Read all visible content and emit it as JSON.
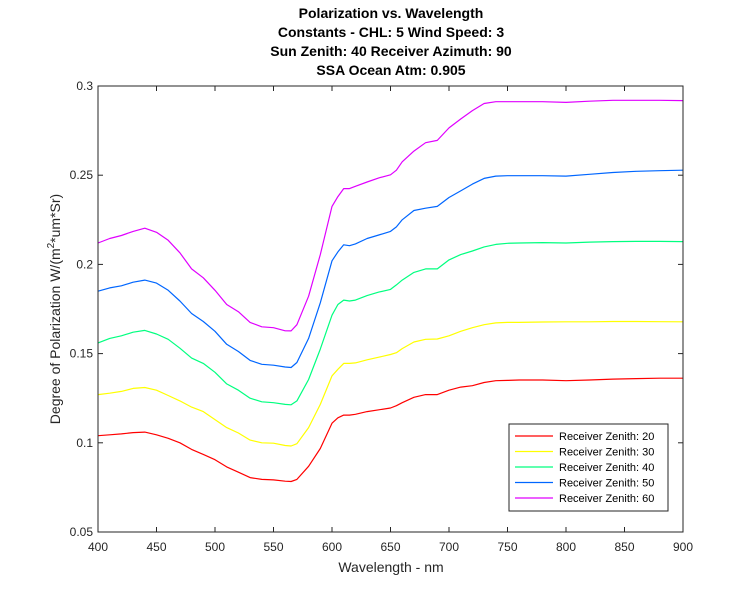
{
  "chart_data": {
    "type": "line",
    "title_lines": [
      "Polarization vs. Wavelength",
      "Constants - CHL: 5 Wind Speed: 3",
      "Sun Zenith: 40 Receiver Azimuth: 90",
      "SSA Ocean Atm: 0.905"
    ],
    "xlabel": "Wavelength - nm",
    "ylabel": "Degree of Polarization W/(m²*um*Sr)",
    "ylabel_parts": {
      "pre": "Degree of Polarization W/(m",
      "sup": "2",
      "post": "*um*Sr)"
    },
    "xlim": [
      400,
      900
    ],
    "ylim": [
      0.05,
      0.3
    ],
    "xticks": [
      400,
      450,
      500,
      550,
      600,
      650,
      700,
      750,
      800,
      850,
      900
    ],
    "xtick_labels": [
      "400",
      "450",
      "500",
      "550",
      "600",
      "650",
      "700",
      "750",
      "800",
      "850",
      "900"
    ],
    "yticks": [
      0.05,
      0.1,
      0.15,
      0.2,
      0.25,
      0.3
    ],
    "ytick_labels": [
      "0.05",
      "0.1",
      "0.15",
      "0.2",
      "0.25",
      "0.3"
    ],
    "grid": false,
    "legend_position": "bottom-right",
    "x": [
      400,
      410,
      420,
      430,
      440,
      450,
      460,
      470,
      480,
      490,
      500,
      510,
      520,
      530,
      540,
      550,
      560,
      565,
      570,
      580,
      590,
      600,
      605,
      610,
      615,
      620,
      630,
      640,
      650,
      655,
      660,
      670,
      680,
      690,
      700,
      710,
      720,
      730,
      740,
      750,
      760,
      780,
      800,
      820,
      840,
      860,
      880,
      900
    ],
    "series": [
      {
        "name": "Receiver Zenith: 20",
        "color": "#ff0000",
        "values": [
          0.104,
          0.1045,
          0.105,
          0.1057,
          0.106,
          0.1045,
          0.1025,
          0.1,
          0.0963,
          0.0935,
          0.0905,
          0.0865,
          0.0835,
          0.0805,
          0.0795,
          0.0792,
          0.0785,
          0.0783,
          0.0795,
          0.0868,
          0.0968,
          0.111,
          0.114,
          0.1155,
          0.1155,
          0.116,
          0.1175,
          0.1185,
          0.1195,
          0.1208,
          0.1225,
          0.1255,
          0.127,
          0.127,
          0.1295,
          0.1312,
          0.132,
          0.1338,
          0.1348,
          0.135,
          0.1352,
          0.1352,
          0.1348,
          0.1352,
          0.1357,
          0.136,
          0.1362,
          0.1362
        ]
      },
      {
        "name": "Receiver Zenith: 30",
        "color": "#ffff00",
        "values": [
          0.127,
          0.1278,
          0.1288,
          0.1305,
          0.131,
          0.1295,
          0.1265,
          0.1235,
          0.12,
          0.1175,
          0.113,
          0.1085,
          0.1055,
          0.1015,
          0.1,
          0.0998,
          0.0985,
          0.0982,
          0.0995,
          0.1085,
          0.1215,
          0.1375,
          0.1412,
          0.1445,
          0.1445,
          0.1448,
          0.1465,
          0.148,
          0.1495,
          0.1505,
          0.1528,
          0.1565,
          0.158,
          0.1582,
          0.16,
          0.1625,
          0.1645,
          0.1662,
          0.1672,
          0.1675,
          0.1675,
          0.1677,
          0.1678,
          0.1678,
          0.168,
          0.168,
          0.1679,
          0.1678
        ]
      },
      {
        "name": "Receiver Zenith: 40",
        "color": "#00ff7f",
        "values": [
          0.156,
          0.1585,
          0.16,
          0.162,
          0.163,
          0.161,
          0.158,
          0.153,
          0.1475,
          0.1445,
          0.1395,
          0.133,
          0.1295,
          0.125,
          0.123,
          0.1225,
          0.1215,
          0.1213,
          0.1235,
          0.1355,
          0.1525,
          0.1715,
          0.1775,
          0.18,
          0.1795,
          0.18,
          0.1825,
          0.1845,
          0.186,
          0.1885,
          0.1912,
          0.1955,
          0.1975,
          0.1975,
          0.2025,
          0.2055,
          0.2075,
          0.2098,
          0.2112,
          0.2118,
          0.212,
          0.2122,
          0.212,
          0.2125,
          0.2128,
          0.2129,
          0.2129,
          0.2128
        ]
      },
      {
        "name": "Receiver Zenith: 50",
        "color": "#0066ff",
        "values": [
          0.185,
          0.1868,
          0.188,
          0.19,
          0.1912,
          0.1895,
          0.1855,
          0.1795,
          0.1725,
          0.168,
          0.1625,
          0.1552,
          0.1512,
          0.1462,
          0.144,
          0.1435,
          0.1425,
          0.1422,
          0.145,
          0.1585,
          0.1785,
          0.202,
          0.207,
          0.211,
          0.2105,
          0.2115,
          0.2145,
          0.2165,
          0.2185,
          0.221,
          0.225,
          0.2302,
          0.2315,
          0.2325,
          0.2375,
          0.2412,
          0.245,
          0.2482,
          0.2495,
          0.2497,
          0.2497,
          0.2497,
          0.2495,
          0.2505,
          0.2515,
          0.2522,
          0.2525,
          0.2528
        ]
      },
      {
        "name": "Receiver Zenith: 60",
        "color": "#e000ff",
        "values": [
          0.212,
          0.2145,
          0.2162,
          0.2185,
          0.2203,
          0.218,
          0.2135,
          0.2065,
          0.1975,
          0.1925,
          0.1855,
          0.1775,
          0.1735,
          0.1675,
          0.165,
          0.1645,
          0.1628,
          0.1627,
          0.1662,
          0.1822,
          0.2055,
          0.2325,
          0.238,
          0.2425,
          0.2425,
          0.2438,
          0.2462,
          0.2485,
          0.2502,
          0.2528,
          0.2575,
          0.2635,
          0.2682,
          0.2695,
          0.2765,
          0.2815,
          0.2862,
          0.2902,
          0.2912,
          0.2912,
          0.2912,
          0.2912,
          0.2908,
          0.2915,
          0.292,
          0.292,
          0.292,
          0.2918
        ]
      }
    ]
  }
}
